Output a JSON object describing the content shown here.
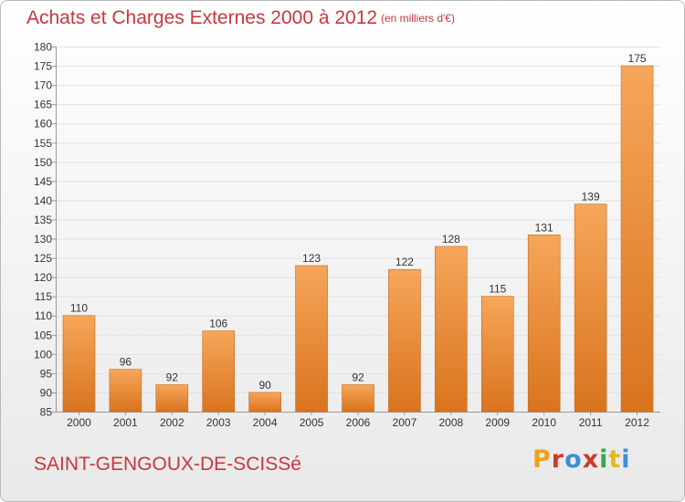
{
  "header": {
    "title": "Achats et Charges Externes 2000 à 2012",
    "subtitle": "(en milliers d'€)"
  },
  "footer": {
    "commune": "SAINT-GENGOUX-DE-SCISSé",
    "brand_letters": [
      "P",
      "r",
      "o",
      "x",
      "i",
      "t",
      "i"
    ],
    "brand_colors": [
      "#f0a020",
      "#d03a2a",
      "#3a8fd6",
      "#d03a2a",
      "#3aa84a",
      "#e0bb20",
      "#3a8fd6"
    ]
  },
  "colors": {
    "bar_light": "#f6a65a",
    "bar_dark": "#d9741e",
    "bar_edge": "#c46a1e",
    "grid": "#e2e2e2",
    "axis": "#9a9a9a",
    "text": "#333333",
    "accent": "#c8383d"
  },
  "chart_data": {
    "type": "bar",
    "categories": [
      "2000",
      "2001",
      "2002",
      "2003",
      "2004",
      "2005",
      "2006",
      "2007",
      "2008",
      "2009",
      "2010",
      "2011",
      "2012"
    ],
    "values": [
      110,
      96,
      92,
      106,
      90,
      123,
      92,
      122,
      128,
      115,
      131,
      139,
      175
    ],
    "title": "Achats et Charges Externes 2000 à 2012",
    "subtitle": "(en milliers d'€)",
    "xlabel": "",
    "ylabel": "",
    "ylim": [
      85,
      180
    ],
    "ytick_step": 5,
    "grid": true,
    "data_labels": true
  }
}
